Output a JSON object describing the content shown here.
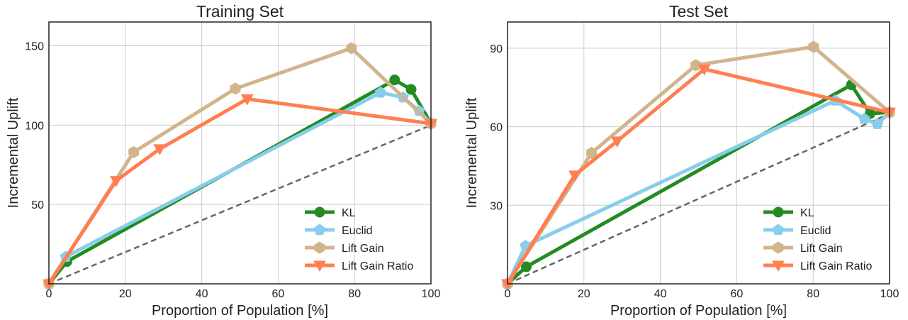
{
  "chart_data": [
    {
      "type": "line",
      "title": "Training Set",
      "xlabel": "Proportion of Population [%]",
      "ylabel": "Incremental Uplift",
      "xlim": [
        0,
        100
      ],
      "ylim": [
        0,
        165
      ],
      "xticks": [
        0,
        20,
        40,
        60,
        80,
        100
      ],
      "yticks": [
        50,
        100,
        150
      ],
      "grid": true,
      "legend_position": "bottom-right",
      "baseline": {
        "x": [
          0,
          100
        ],
        "y": [
          0,
          100
        ],
        "style": "dashed",
        "color": "#666666"
      },
      "series": [
        {
          "name": "KL",
          "color": "#228b22",
          "marker": "circle",
          "x": [
            0,
            4.7,
            90.5,
            94.8,
            100
          ],
          "y": [
            0,
            14,
            128.5,
            122.5,
            101
          ]
        },
        {
          "name": "Euclid",
          "color": "#87ceeb",
          "marker": "pentagon",
          "x": [
            0,
            4.4,
            86.8,
            92.7,
            96.9,
            100
          ],
          "y": [
            0,
            17,
            120.5,
            117.5,
            109,
            101
          ]
        },
        {
          "name": "Lift Gain",
          "color": "#d2b48c",
          "marker": "hexagon",
          "x": [
            0,
            22.2,
            48.8,
            79.2,
            100
          ],
          "y": [
            0,
            83,
            123,
            148.5,
            101
          ]
        },
        {
          "name": "Lift Gain Ratio",
          "color": "#ff7f50",
          "marker": "triangle-down",
          "x": [
            0,
            17.6,
            29.0,
            51.9,
            100
          ],
          "y": [
            0,
            65,
            85,
            116.5,
            101
          ]
        }
      ]
    },
    {
      "type": "line",
      "title": "Test Set",
      "xlabel": "Proportion of Population [%]",
      "ylabel": "Incremental Uplift",
      "xlim": [
        0,
        100
      ],
      "ylim": [
        0,
        100
      ],
      "xticks": [
        0,
        20,
        40,
        60,
        80,
        100
      ],
      "yticks": [
        30,
        60,
        90
      ],
      "grid": true,
      "legend_position": "bottom-right",
      "baseline": {
        "x": [
          0,
          100
        ],
        "y": [
          0,
          65
        ],
        "style": "dashed",
        "color": "#666666"
      },
      "series": [
        {
          "name": "KL",
          "color": "#228b22",
          "marker": "circle",
          "x": [
            0,
            4.9,
            90.0,
            94.9,
            100
          ],
          "y": [
            0,
            6.5,
            76,
            65,
            65.5
          ]
        },
        {
          "name": "Euclid",
          "color": "#87ceeb",
          "marker": "pentagon",
          "x": [
            0,
            4.7,
            85.8,
            93.4,
            96.8,
            100
          ],
          "y": [
            0,
            14.5,
            70,
            63,
            61,
            65.5
          ]
        },
        {
          "name": "Lift Gain",
          "color": "#d2b48c",
          "marker": "hexagon",
          "x": [
            0,
            22.0,
            49.3,
            80.1,
            100
          ],
          "y": [
            0,
            50,
            83.5,
            90.5,
            65.5
          ]
        },
        {
          "name": "Lift Gain Ratio",
          "color": "#ff7f50",
          "marker": "triangle-down",
          "x": [
            0,
            17.6,
            28.7,
            51.5,
            100
          ],
          "y": [
            0,
            41.5,
            54.5,
            82,
            65.5
          ]
        }
      ]
    }
  ]
}
